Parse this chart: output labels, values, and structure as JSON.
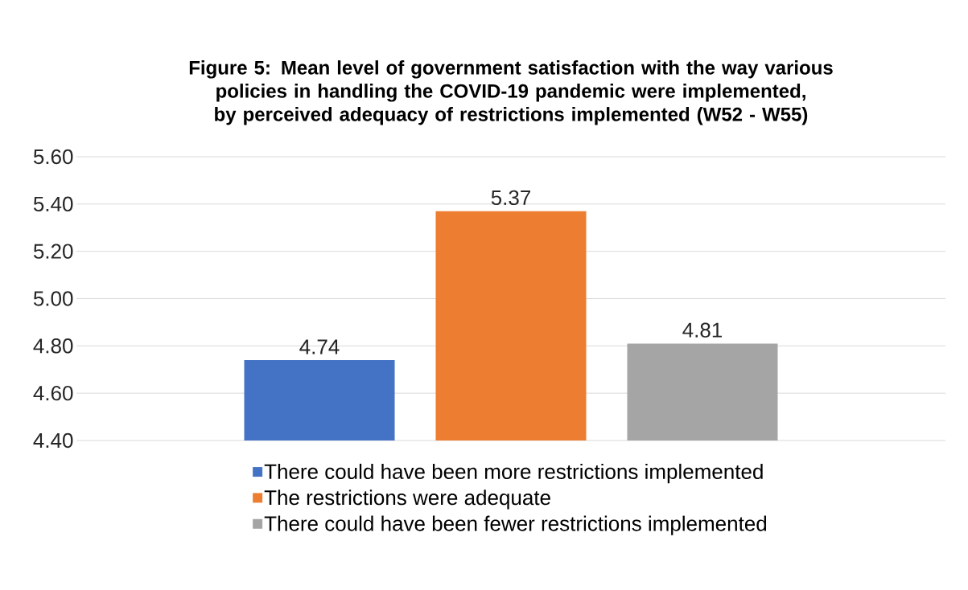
{
  "chart_data": {
    "type": "bar",
    "title": "Figure 5: Mean level of government satisfaction with the way various policies in handling the COVID-19 pandemic were implemented, by perceived adequacy of restrictions implemented (W52 - W55)",
    "categories": [
      null
    ],
    "series": [
      {
        "name": "There could have been more restrictions implemented",
        "color": "#4472c4",
        "values": [
          4.74
        ]
      },
      {
        "name": "The restrictions were adequate",
        "color": "#ed7d31",
        "values": [
          5.37
        ]
      },
      {
        "name": "There could have been fewer restrictions implemented",
        "color": "#a5a5a5",
        "values": [
          4.81
        ]
      }
    ],
    "ylim": [
      4.4,
      5.6
    ],
    "yticks": [
      {
        "value": 4.4,
        "label": "4.40"
      },
      {
        "value": 4.6,
        "label": "4.60"
      },
      {
        "value": 4.8,
        "label": "4.80"
      },
      {
        "value": 5.0,
        "label": "5.00"
      },
      {
        "value": 5.2,
        "label": "5.20"
      },
      {
        "value": 5.4,
        "label": "5.40"
      },
      {
        "value": 5.6,
        "label": "5.60"
      }
    ],
    "grid": "y",
    "legend": "bottom",
    "data_labels": true
  }
}
